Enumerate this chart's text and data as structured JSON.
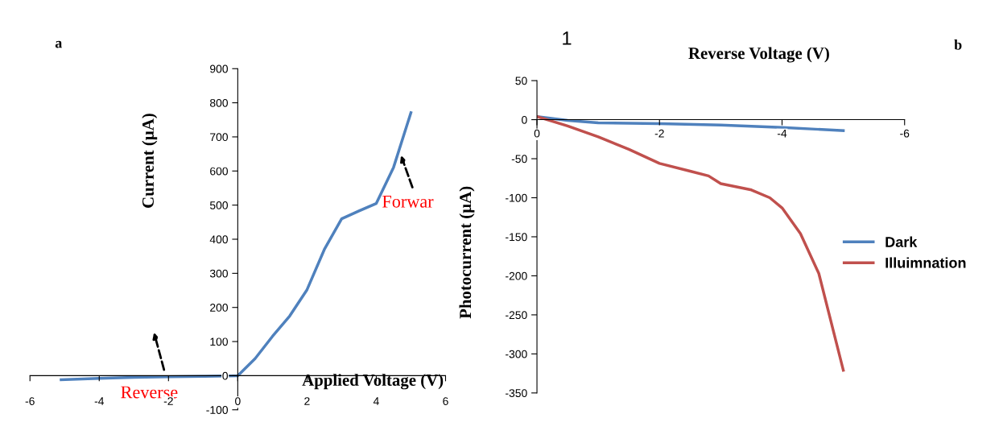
{
  "chart_data": [
    {
      "type": "line",
      "xlabel": "Applied Voltage (V)",
      "ylabel": "Current (µA)",
      "xlim": [
        -6,
        6
      ],
      "xticks": [
        -6,
        -4,
        -2,
        0,
        2,
        4,
        6
      ],
      "ylim": [
        -100,
        900
      ],
      "yticks": [
        -100,
        0,
        100,
        200,
        300,
        400,
        500,
        600,
        700,
        800,
        900
      ],
      "grid": false,
      "legend": false,
      "marker": "none",
      "line_style": "solid",
      "series": [
        {
          "color": "#4f81bd",
          "x": [
            -5.1,
            -4,
            -3,
            -2,
            -1,
            -0.3,
            0,
            0.5,
            1,
            1.5,
            2,
            2.5,
            3,
            3.5,
            4,
            4.5,
            5
          ],
          "values": [
            -12,
            -8,
            -5,
            -3,
            -2,
            -1,
            0,
            50,
            115,
            175,
            252,
            370,
            460,
            483,
            505,
            611,
            771
          ]
        }
      ],
      "annotations": [
        "a",
        "Forwar",
        "Reverse"
      ]
    },
    {
      "type": "line",
      "xlabel": "Reverse Voltage (V)",
      "ylabel": "Photocurrent (µA)",
      "xlim": [
        0,
        -6
      ],
      "xticks": [
        0,
        -2,
        -4,
        -6
      ],
      "ylim": [
        -350,
        50
      ],
      "yticks": [
        -350,
        -300,
        -250,
        -200,
        -150,
        -100,
        -50,
        0,
        50
      ],
      "grid": false,
      "legend": "right",
      "marker": "none",
      "line_style": "solid",
      "series": [
        {
          "name": "Dark",
          "color": "#4f81bd",
          "x": [
            0,
            -0.5,
            -1,
            -2,
            -3,
            -4,
            -5
          ],
          "values": [
            4,
            -1,
            -4,
            -5,
            -7,
            -10,
            -14
          ]
        },
        {
          "name": "Illuimnation",
          "color": "#c0504d",
          "x": [
            0,
            -0.5,
            -1,
            -1.5,
            -2,
            -2.5,
            -2.8,
            -3,
            -3.5,
            -3.8,
            -4,
            -4.3,
            -4.6,
            -5
          ],
          "values": [
            4,
            -8,
            -22,
            -38,
            -56,
            -66,
            -72,
            -82,
            -90,
            -100,
            -113,
            -146,
            -197,
            -321
          ]
        }
      ],
      "annotations": [
        "1",
        "b"
      ]
    }
  ]
}
